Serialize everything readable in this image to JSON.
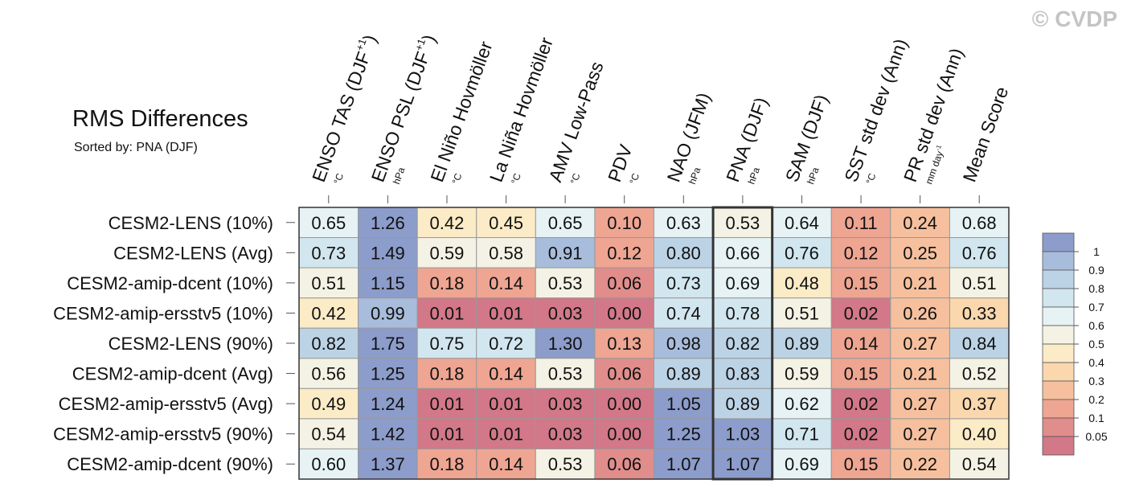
{
  "chart_data": {
    "type": "heatmap",
    "title": "RMS Differences",
    "subtitle": "Sorted by: PNA (DJF)",
    "watermark": "© CVDP",
    "highlight_column": 7,
    "columns": [
      {
        "label": "ENSO TAS (DJF",
        "sup": "+1",
        "tail": ")",
        "unit": "°C"
      },
      {
        "label": "ENSO PSL (DJF",
        "sup": "+1",
        "tail": ")",
        "unit": "hPa"
      },
      {
        "label": "El Niño Hovmöller",
        "unit": "°C"
      },
      {
        "label": "La Niña Hovmöller",
        "unit": "°C"
      },
      {
        "label": "AMV Low-Pass",
        "unit": "°C"
      },
      {
        "label": "PDV",
        "unit": "°C"
      },
      {
        "label": "NAO (JFM)",
        "unit": "hPa"
      },
      {
        "label": "PNA (DJF)",
        "unit": "hPa"
      },
      {
        "label": "SAM (DJF)",
        "unit": "hPa"
      },
      {
        "label": "SST std dev (Ann)",
        "unit": "°C"
      },
      {
        "label": "PR std dev (Ann)",
        "unit": "mm day",
        "unit_sup": "-1"
      },
      {
        "label": "Mean Score"
      }
    ],
    "rows": [
      {
        "name": "CESM2-LENS (10%)",
        "values": [
          0.65,
          1.26,
          0.42,
          0.45,
          0.65,
          0.1,
          0.63,
          0.53,
          0.64,
          0.11,
          0.24,
          0.68
        ],
        "value_labels": [
          "0.65",
          "1.26",
          "0.42",
          "0.45",
          "0.65",
          "0.10",
          "0.63",
          "0.53",
          "0.64",
          "0.11",
          "0.24",
          "0.68"
        ]
      },
      {
        "name": "CESM2-LENS (Avg)",
        "values": [
          0.73,
          1.49,
          0.59,
          0.58,
          0.91,
          0.12,
          0.8,
          0.66,
          0.76,
          0.12,
          0.25,
          0.76
        ],
        "value_labels": [
          "0.73",
          "1.49",
          "0.59",
          "0.58",
          "0.91",
          "0.12",
          "0.80",
          "0.66",
          "0.76",
          "0.12",
          "0.25",
          "0.76"
        ]
      },
      {
        "name": "CESM2-amip-dcent (10%)",
        "values": [
          0.51,
          1.15,
          0.18,
          0.14,
          0.53,
          0.06,
          0.73,
          0.69,
          0.48,
          0.15,
          0.21,
          0.51
        ],
        "value_labels": [
          "0.51",
          "1.15",
          "0.18",
          "0.14",
          "0.53",
          "0.06",
          "0.73",
          "0.69",
          "0.48",
          "0.15",
          "0.21",
          "0.51"
        ]
      },
      {
        "name": "CESM2-amip-ersstv5 (10%)",
        "values": [
          0.42,
          0.99,
          0.01,
          0.01,
          0.03,
          0.0,
          0.74,
          0.78,
          0.51,
          0.02,
          0.26,
          0.33
        ],
        "value_labels": [
          "0.42",
          "0.99",
          "0.01",
          "0.01",
          "0.03",
          "0.00",
          "0.74",
          "0.78",
          "0.51",
          "0.02",
          "0.26",
          "0.33"
        ]
      },
      {
        "name": "CESM2-LENS (90%)",
        "values": [
          0.82,
          1.75,
          0.75,
          0.72,
          1.3,
          0.13,
          0.98,
          0.82,
          0.89,
          0.14,
          0.27,
          0.84
        ],
        "value_labels": [
          "0.82",
          "1.75",
          "0.75",
          "0.72",
          "1.30",
          "0.13",
          "0.98",
          "0.82",
          "0.89",
          "0.14",
          "0.27",
          "0.84"
        ]
      },
      {
        "name": "CESM2-amip-dcent (Avg)",
        "values": [
          0.56,
          1.25,
          0.18,
          0.14,
          0.53,
          0.06,
          0.89,
          0.83,
          0.59,
          0.15,
          0.21,
          0.52
        ],
        "value_labels": [
          "0.56",
          "1.25",
          "0.18",
          "0.14",
          "0.53",
          "0.06",
          "0.89",
          "0.83",
          "0.59",
          "0.15",
          "0.21",
          "0.52"
        ]
      },
      {
        "name": "CESM2-amip-ersstv5 (Avg)",
        "values": [
          0.49,
          1.24,
          0.01,
          0.01,
          0.03,
          0.0,
          1.05,
          0.89,
          0.62,
          0.02,
          0.27,
          0.37
        ],
        "value_labels": [
          "0.49",
          "1.24",
          "0.01",
          "0.01",
          "0.03",
          "0.00",
          "1.05",
          "0.89",
          "0.62",
          "0.02",
          "0.27",
          "0.37"
        ]
      },
      {
        "name": "CESM2-amip-ersstv5 (90%)",
        "values": [
          0.54,
          1.42,
          0.01,
          0.01,
          0.03,
          0.0,
          1.25,
          1.03,
          0.71,
          0.02,
          0.27,
          0.4
        ],
        "value_labels": [
          "0.54",
          "1.42",
          "0.01",
          "0.01",
          "0.03",
          "0.00",
          "1.25",
          "1.03",
          "0.71",
          "0.02",
          "0.27",
          "0.40"
        ]
      },
      {
        "name": "CESM2-amip-dcent (90%)",
        "values": [
          0.6,
          1.37,
          0.18,
          0.14,
          0.53,
          0.06,
          1.07,
          1.07,
          0.69,
          0.15,
          0.22,
          0.54
        ],
        "value_labels": [
          "0.60",
          "1.37",
          "0.18",
          "0.14",
          "0.53",
          "0.06",
          "1.07",
          "1.07",
          "0.69",
          "0.15",
          "0.22",
          "0.54"
        ]
      }
    ],
    "colorbar": {
      "levels": [
        1,
        0.9,
        0.8,
        0.7,
        0.6,
        0.5,
        0.4,
        0.3,
        0.2,
        0.1,
        0.05
      ],
      "colors": [
        "#8c9ccb",
        "#a8bcdb",
        "#bcd3e6",
        "#d2e6ef",
        "#e6f2f3",
        "#f4f2e4",
        "#fbebc6",
        "#fad7ad",
        "#f6c09e",
        "#eea592",
        "#e08d8b",
        "#d27888"
      ]
    }
  }
}
